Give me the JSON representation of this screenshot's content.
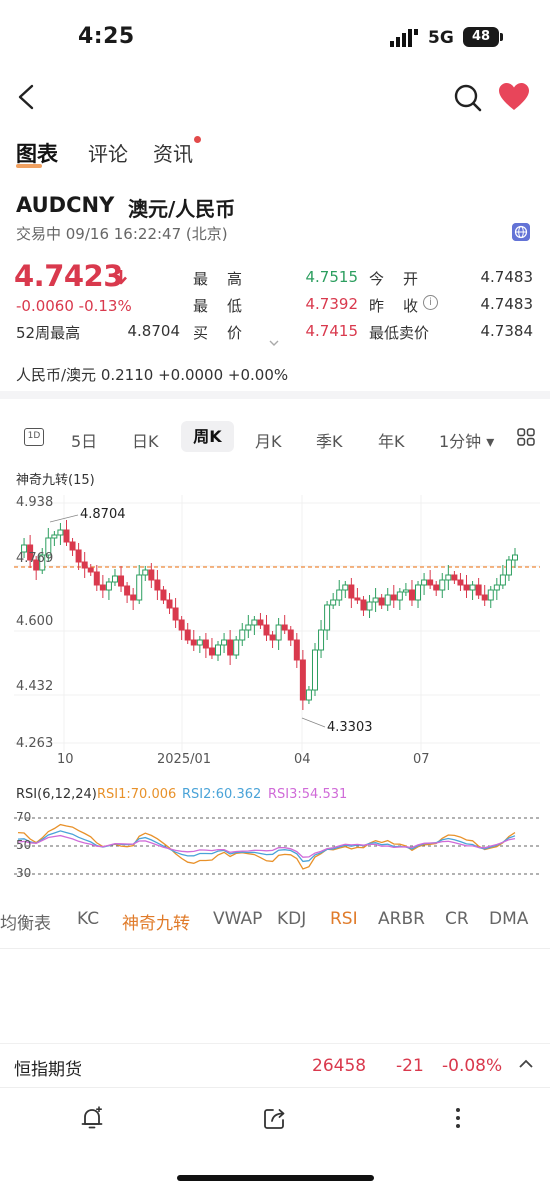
{
  "status_bar": {
    "time": "4:25",
    "network": "5G",
    "battery": "48"
  },
  "tabs": [
    {
      "label": "图表"
    },
    {
      "label": "评论"
    },
    {
      "label": "资讯"
    }
  ],
  "header": {
    "symbol": "AUDCNY",
    "name": "澳元/人民币",
    "trade_status": "交易中 09/16 16:22:47 (北京)",
    "price": "4.7423",
    "change": "-0.0060  -0.13%",
    "stats": {
      "high_label": "最　高",
      "high": "4.7515",
      "low_label": "最　低",
      "low": "4.7392",
      "buy_label": "买　价",
      "buy": "4.7415",
      "open_label": "今　开",
      "open": "4.7483",
      "prev_label": "昨　收",
      "prev": "4.7483",
      "min_ask_label": "最低卖价",
      "min_ask": "4.7384",
      "wk52_label": "52周最高",
      "wk52": "4.8704"
    },
    "cross_rate": "人民币/澳元   0.2110   +0.0000   +0.00%"
  },
  "periods": [
    "5日",
    "日K",
    "周K",
    "月K",
    "季K",
    "年K",
    "1分钟 ▾"
  ],
  "active_period": "周K",
  "chart": {
    "indicator_title": "神奇九转(15)",
    "y_ticks": [
      "4.938",
      "4.769",
      "4.600",
      "4.432",
      "4.263"
    ],
    "x_ticks": [
      "10",
      "2025/01",
      "04",
      "07"
    ],
    "max_annotation": "4.8704",
    "min_annotation": "4.3303",
    "current_line": "4.7423"
  },
  "rsi": {
    "title": "RSI(6,12,24)",
    "rsi1": "RSI1:70.006",
    "rsi2": "RSI2:60.362",
    "rsi3": "RSI3:54.531",
    "ticks": [
      "70",
      "50",
      "30"
    ],
    "colors": {
      "rsi1": "#e8912a",
      "rsi2": "#4aa3d8",
      "rsi3": "#d06bd8"
    }
  },
  "indicators": [
    "均衡表",
    "KC",
    "神奇九转",
    "VWAP",
    "KDJ",
    "RSI",
    "ARBR",
    "CR",
    "DMA"
  ],
  "futures_bar": {
    "name": "恒指期货",
    "price": "26458",
    "change": "-21",
    "pct": "-0.08%"
  },
  "colors": {
    "up": "#d9394d",
    "down": "#2c9e5f",
    "accent": "#e07b2a"
  }
}
